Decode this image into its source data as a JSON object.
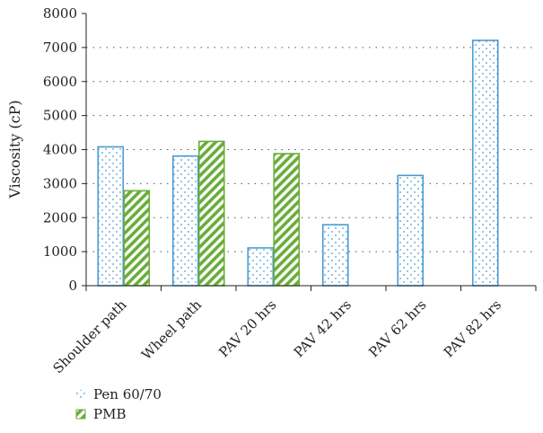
{
  "chart_data": {
    "type": "bar",
    "title": "",
    "xlabel": "",
    "ylabel": "Viscosity (cP)",
    "ylim": [
      0,
      8000
    ],
    "yticks": [
      0,
      1000,
      2000,
      3000,
      4000,
      5000,
      6000,
      7000,
      8000
    ],
    "grid": "horizontal dotted",
    "legend_position": "bottom-left",
    "categories": [
      "Shoulder path",
      "Wheel path",
      "PAV 20 hrs",
      "PAV 42 hrs",
      "PAV 62 hrs",
      "PAV 82 hrs"
    ],
    "series": [
      {
        "name": "Pen 60/70",
        "color": "#4a9bd4",
        "pattern": "dots",
        "values": [
          4080,
          3810,
          1110,
          1790,
          3240,
          7210
        ]
      },
      {
        "name": "PMB",
        "color": "#6aad3a",
        "pattern": "diagonal-stripes",
        "values": [
          2790,
          4240,
          3880,
          null,
          null,
          null
        ]
      }
    ]
  }
}
